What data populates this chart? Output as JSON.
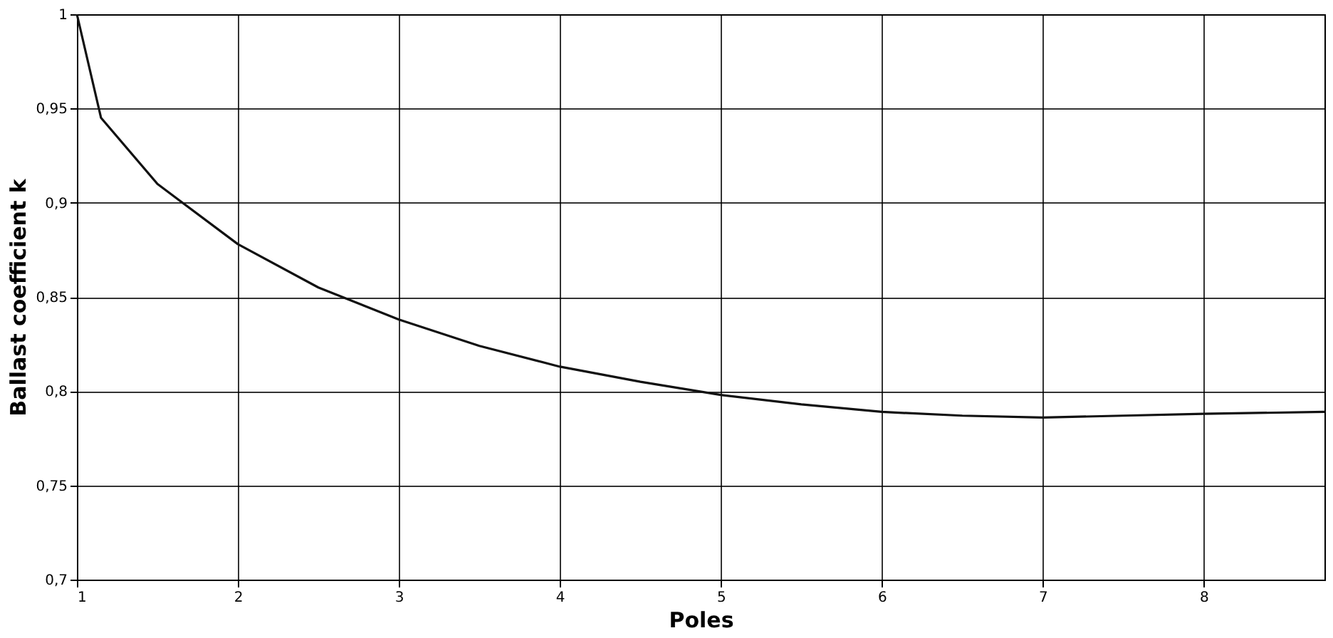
{
  "chart_data": {
    "type": "line",
    "xlabel": "Poles",
    "ylabel": "Ballast coefficient  k",
    "x": [
      1,
      1.15,
      1.5,
      2,
      2.5,
      3,
      3.5,
      4,
      4.5,
      5,
      5.5,
      6,
      6.5,
      7,
      7.5,
      8,
      8.75
    ],
    "series": [
      {
        "color": "#111111",
        "values": [
          1.0,
          0.945,
          0.91,
          0.878,
          0.855,
          0.838,
          0.824,
          0.813,
          0.805,
          0.798,
          0.793,
          0.789,
          0.787,
          0.786,
          0.787,
          0.788,
          0.789
        ]
      }
    ],
    "xlim": [
      1,
      8.75
    ],
    "xticks": [
      1,
      2,
      3,
      4,
      5,
      6,
      7,
      8
    ],
    "ylim": [
      0.7,
      1
    ],
    "yticks": [
      {
        "value": 0.7,
        "label": "0,7"
      },
      {
        "value": 0.75,
        "label": "0,75"
      },
      {
        "value": 0.8,
        "label": "0,8"
      },
      {
        "value": 0.85,
        "label": "0,85"
      },
      {
        "value": 0.9,
        "label": "0,9"
      },
      {
        "value": 0.95,
        "label": "0,95"
      },
      {
        "value": 1,
        "label": "1"
      }
    ],
    "grid": true,
    "marker": "none",
    "line_style": "solid"
  }
}
